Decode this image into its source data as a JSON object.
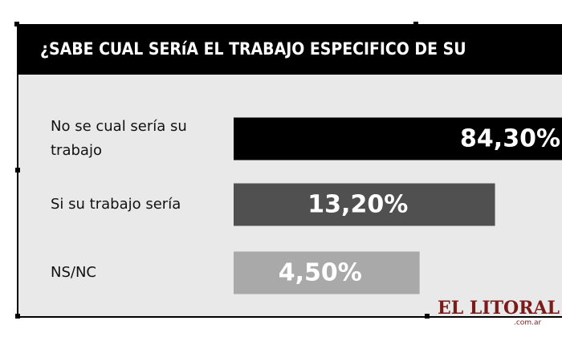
{
  "chart_data": {
    "type": "bar",
    "orientation": "horizontal",
    "title": "¿SABE CUAL SERíA EL TRABAJO ESPECIFICO DE SU",
    "categories": [
      "No se cual sería su trabajo",
      "Si su trabajo sería",
      "NS/NC"
    ],
    "values": [
      84.3,
      13.2,
      4.5
    ],
    "value_labels": [
      "84,30%",
      "13,20%",
      "4,50%"
    ],
    "colors": [
      "#000000",
      "#505050",
      "#a9a9a9"
    ],
    "watermark": {
      "name": "EL LITORAL",
      "domain": ".com.ar"
    }
  }
}
